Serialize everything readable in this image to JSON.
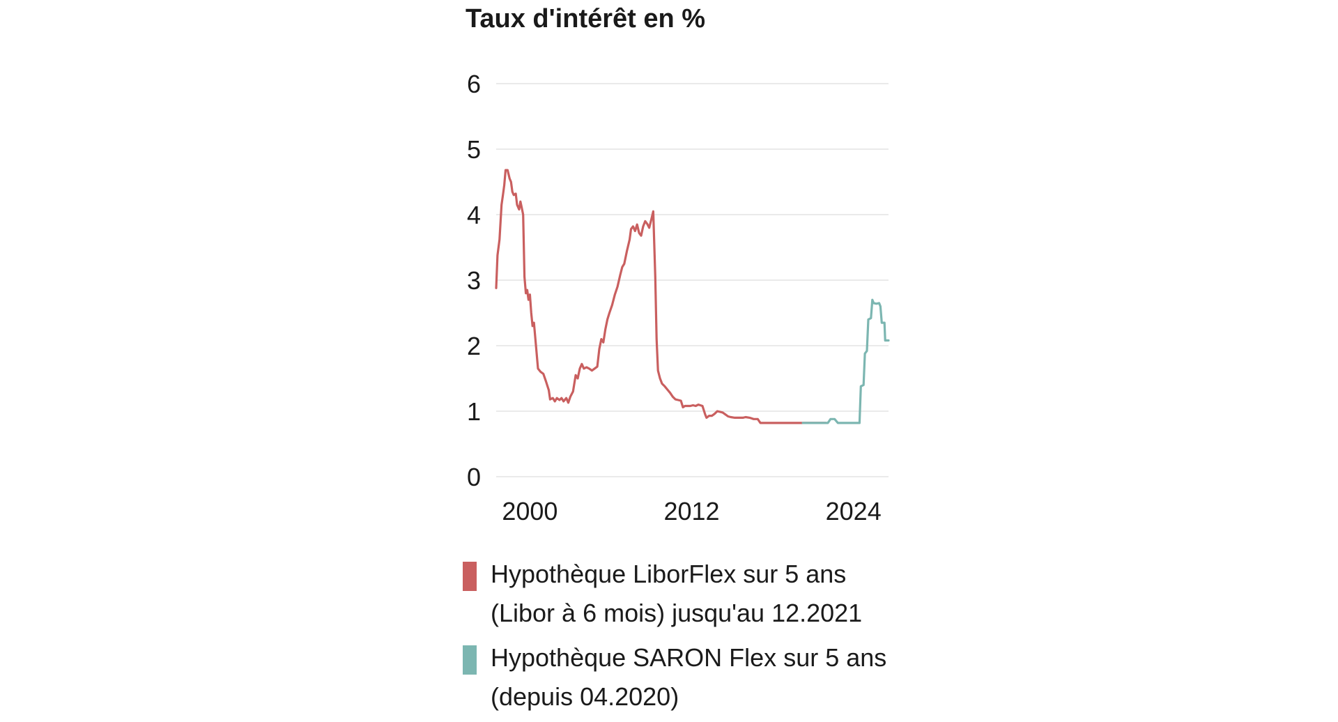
{
  "chart_data": {
    "type": "line",
    "title": "Taux d'intérêt en %",
    "xlabel": "",
    "ylabel": "",
    "xlim": [
      1997.5,
      2026.6
    ],
    "ylim": [
      0,
      6
    ],
    "yticks": [
      0,
      1,
      2,
      3,
      4,
      5,
      6
    ],
    "xticks": [
      {
        "value": 2000,
        "label": "2000"
      },
      {
        "value": 2012,
        "label": "2012"
      },
      {
        "value": 2024,
        "label": "2024"
      }
    ],
    "grid": true,
    "legend_position": "bottom",
    "series": [
      {
        "name": "Hypothèque LiborFlex sur 5 ans (Libor à 6 mois) jusqu'au 12.2021",
        "color": "#c95f5f",
        "points": [
          [
            1997.5,
            2.88
          ],
          [
            1997.6,
            3.38
          ],
          [
            1997.75,
            3.62
          ],
          [
            1997.9,
            4.15
          ],
          [
            1998.0,
            4.3
          ],
          [
            1998.1,
            4.45
          ],
          [
            1998.2,
            4.68
          ],
          [
            1998.35,
            4.68
          ],
          [
            1998.5,
            4.55
          ],
          [
            1998.6,
            4.5
          ],
          [
            1998.7,
            4.35
          ],
          [
            1998.8,
            4.3
          ],
          [
            1998.95,
            4.32
          ],
          [
            1999.05,
            4.15
          ],
          [
            1999.2,
            4.08
          ],
          [
            1999.3,
            4.2
          ],
          [
            1999.4,
            4.1
          ],
          [
            1999.5,
            4.0
          ],
          [
            1999.6,
            3.05
          ],
          [
            1999.7,
            2.8
          ],
          [
            1999.8,
            2.85
          ],
          [
            1999.9,
            2.7
          ],
          [
            2000.0,
            2.78
          ],
          [
            2000.1,
            2.5
          ],
          [
            2000.2,
            2.3
          ],
          [
            2000.3,
            2.35
          ],
          [
            2000.45,
            2.0
          ],
          [
            2000.6,
            1.65
          ],
          [
            2000.8,
            1.6
          ],
          [
            2001.0,
            1.57
          ],
          [
            2001.2,
            1.45
          ],
          [
            2001.4,
            1.32
          ],
          [
            2001.5,
            1.18
          ],
          [
            2001.7,
            1.2
          ],
          [
            2001.85,
            1.15
          ],
          [
            2002.0,
            1.2
          ],
          [
            2002.2,
            1.17
          ],
          [
            2002.35,
            1.2
          ],
          [
            2002.5,
            1.15
          ],
          [
            2002.7,
            1.2
          ],
          [
            2002.85,
            1.13
          ],
          [
            2003.0,
            1.22
          ],
          [
            2003.2,
            1.3
          ],
          [
            2003.4,
            1.55
          ],
          [
            2003.55,
            1.5
          ],
          [
            2003.7,
            1.65
          ],
          [
            2003.85,
            1.72
          ],
          [
            2004.0,
            1.65
          ],
          [
            2004.2,
            1.67
          ],
          [
            2004.4,
            1.65
          ],
          [
            2004.6,
            1.62
          ],
          [
            2004.8,
            1.65
          ],
          [
            2005.0,
            1.68
          ],
          [
            2005.15,
            1.95
          ],
          [
            2005.3,
            2.1
          ],
          [
            2005.45,
            2.05
          ],
          [
            2005.6,
            2.25
          ],
          [
            2005.75,
            2.4
          ],
          [
            2005.9,
            2.5
          ],
          [
            2006.1,
            2.62
          ],
          [
            2006.3,
            2.78
          ],
          [
            2006.5,
            2.9
          ],
          [
            2006.7,
            3.08
          ],
          [
            2006.85,
            3.2
          ],
          [
            2007.0,
            3.25
          ],
          [
            2007.2,
            3.45
          ],
          [
            2007.4,
            3.62
          ],
          [
            2007.5,
            3.78
          ],
          [
            2007.65,
            3.82
          ],
          [
            2007.8,
            3.75
          ],
          [
            2007.95,
            3.85
          ],
          [
            2008.1,
            3.72
          ],
          [
            2008.25,
            3.68
          ],
          [
            2008.4,
            3.82
          ],
          [
            2008.55,
            3.9
          ],
          [
            2008.7,
            3.86
          ],
          [
            2008.85,
            3.8
          ],
          [
            2009.0,
            3.92
          ],
          [
            2009.15,
            4.05
          ],
          [
            2009.3,
            3.05
          ],
          [
            2009.4,
            2.1
          ],
          [
            2009.5,
            1.62
          ],
          [
            2009.65,
            1.5
          ],
          [
            2009.8,
            1.42
          ],
          [
            2010.0,
            1.38
          ],
          [
            2010.2,
            1.33
          ],
          [
            2010.4,
            1.28
          ],
          [
            2010.6,
            1.22
          ],
          [
            2010.8,
            1.18
          ],
          [
            2011.0,
            1.17
          ],
          [
            2011.2,
            1.16
          ],
          [
            2011.35,
            1.06
          ],
          [
            2011.5,
            1.08
          ],
          [
            2011.7,
            1.08
          ],
          [
            2011.9,
            1.08
          ],
          [
            2012.1,
            1.09
          ],
          [
            2012.3,
            1.08
          ],
          [
            2012.5,
            1.1
          ],
          [
            2012.8,
            1.08
          ],
          [
            2013.0,
            0.95
          ],
          [
            2013.1,
            0.9
          ],
          [
            2013.3,
            0.93
          ],
          [
            2013.5,
            0.93
          ],
          [
            2013.7,
            0.96
          ],
          [
            2013.9,
            1.0
          ],
          [
            2014.1,
            0.99
          ],
          [
            2014.3,
            0.98
          ],
          [
            2014.5,
            0.95
          ],
          [
            2014.7,
            0.92
          ],
          [
            2014.9,
            0.91
          ],
          [
            2015.2,
            0.9
          ],
          [
            2015.5,
            0.9
          ],
          [
            2015.8,
            0.9
          ],
          [
            2016.0,
            0.91
          ],
          [
            2016.3,
            0.9
          ],
          [
            2016.6,
            0.88
          ],
          [
            2016.9,
            0.88
          ],
          [
            2017.1,
            0.82
          ],
          [
            2018.0,
            0.82
          ],
          [
            2019.0,
            0.82
          ],
          [
            2020.0,
            0.82
          ],
          [
            2021.0,
            0.82
          ],
          [
            2021.5,
            0.82
          ],
          [
            2021.95,
            0.82
          ]
        ]
      },
      {
        "name": "Hypothèque SARON Flex sur 5 ans (depuis 04.2020)",
        "color": "#7cb6b1",
        "points": [
          [
            2020.25,
            0.82
          ],
          [
            2020.5,
            0.82
          ],
          [
            2021.0,
            0.82
          ],
          [
            2022.0,
            0.82
          ],
          [
            2022.1,
            0.82
          ],
          [
            2022.3,
            0.88
          ],
          [
            2022.6,
            0.88
          ],
          [
            2022.85,
            0.82
          ],
          [
            2023.0,
            0.82
          ],
          [
            2023.5,
            0.82
          ],
          [
            2024.0,
            0.82
          ],
          [
            2024.1,
            0.82
          ],
          [
            2024.3,
            0.82
          ],
          [
            2024.45,
            0.82
          ],
          [
            2024.55,
            1.38
          ],
          [
            2024.75,
            1.4
          ],
          [
            2024.85,
            1.88
          ],
          [
            2025.0,
            1.92
          ],
          [
            2025.1,
            2.4
          ],
          [
            2025.3,
            2.42
          ],
          [
            2025.4,
            2.7
          ],
          [
            2025.5,
            2.65
          ],
          [
            2025.7,
            2.64
          ],
          [
            2025.9,
            2.65
          ],
          [
            2026.0,
            2.6
          ],
          [
            2026.1,
            2.35
          ],
          [
            2026.3,
            2.35
          ],
          [
            2026.35,
            2.08
          ],
          [
            2026.6,
            2.08
          ]
        ]
      }
    ]
  }
}
